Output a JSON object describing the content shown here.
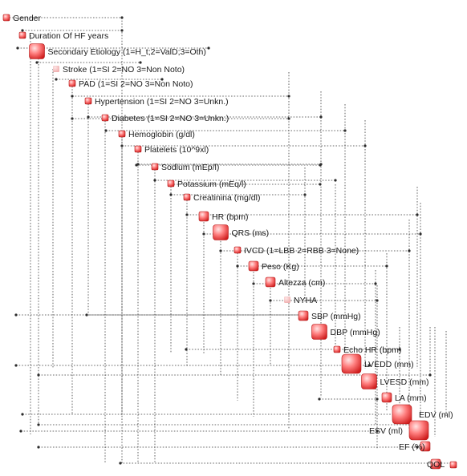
{
  "nodes": [
    {
      "id": "gender",
      "label": "Gender",
      "size": "small"
    },
    {
      "id": "duration",
      "label": "Duration Of HF years",
      "size": "small"
    },
    {
      "id": "sec_etiology",
      "label": "Secondary Etiology (1=H_t;2=ValD;3=Oth)",
      "size": "large"
    },
    {
      "id": "stroke",
      "label": "Stroke (1=SI 2=NO 3=Non Noto)",
      "size": "small",
      "style": "faded"
    },
    {
      "id": "pad",
      "label": "PAD (1=SI 2=NO 3=Non Noto)",
      "size": "small"
    },
    {
      "id": "hypertension",
      "label": "Hypertension  (1=SI 2=NO 3=Unkn.)",
      "size": "small"
    },
    {
      "id": "diabetes",
      "label": "Diabetes  (1=SI 2=NO 3=Unkn.)",
      "size": "small"
    },
    {
      "id": "hemoglobin",
      "label": "Hemoglobin (g/dl)",
      "size": "small"
    },
    {
      "id": "platelets",
      "label": "Platelets (10^9xl)",
      "size": "small"
    },
    {
      "id": "sodium",
      "label": "Sodium (mEp/l)",
      "size": "small"
    },
    {
      "id": "potassium",
      "label": "Potassium (mEq/l)",
      "size": "small"
    },
    {
      "id": "creatinina",
      "label": "Creatinina (mg/dl)",
      "size": "small"
    },
    {
      "id": "hr",
      "label": "HR (bpm)",
      "size": "medium"
    },
    {
      "id": "qrs",
      "label": "QRS (ms)",
      "size": "large"
    },
    {
      "id": "ivcd",
      "label": "IVCD (1=LBB 2=RBB 3=None)",
      "size": "small"
    },
    {
      "id": "peso",
      "label": "Peso (Kg)",
      "size": "medium"
    },
    {
      "id": "altezza",
      "label": "Altezza (cm)",
      "size": "medium"
    },
    {
      "id": "nyha",
      "label": "NYHA",
      "size": "small",
      "style": "faded"
    },
    {
      "id": "sbp",
      "label": "SBP (mmHg)",
      "size": "medium"
    },
    {
      "id": "dbp",
      "label": "DBP (mmHg)",
      "size": "large"
    },
    {
      "id": "echo_hr",
      "label": "Echo HR (bpm)",
      "size": "small"
    },
    {
      "id": "lvedd",
      "label": "LVEDD (mm)",
      "size": "xlarge"
    },
    {
      "id": "lvesd",
      "label": "LVESD (mm)",
      "size": "large"
    },
    {
      "id": "la",
      "label": "LA (mm)",
      "size": "medium"
    },
    {
      "id": "edv",
      "label": "EDV (ml)",
      "size": "xlarge"
    },
    {
      "id": "esv",
      "label": "ESV (ml)",
      "size": "xlarge"
    },
    {
      "id": "ef",
      "label": "EF (%)",
      "size": "medium"
    },
    {
      "id": "qol",
      "label": "QOL",
      "size": "medium"
    },
    {
      "id": "end",
      "label": "",
      "size": "small"
    }
  ],
  "colors": {
    "node_fill_light": "#ffd0d0",
    "node_fill_mid": "#ff7a7a",
    "node_fill_dark": "#d92020",
    "node_stroke": "#b01818",
    "faded_fill": "#f3b9b9",
    "connector": "#3a3a3a",
    "label_text": "#1a1a1a",
    "background": "#ffffff"
  }
}
